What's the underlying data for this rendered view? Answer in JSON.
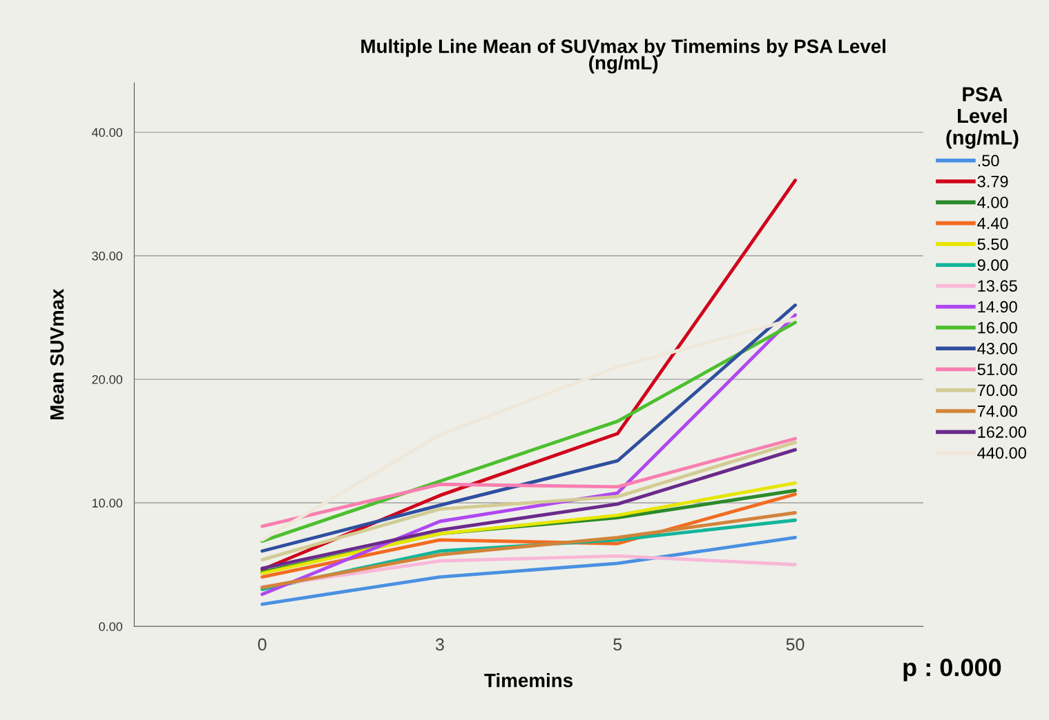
{
  "chart_data": {
    "type": "line",
    "title": "Multiple Line Mean of SUVmax by Timemins by PSA Level\n(ng/mL)",
    "xlabel": "Timemins",
    "ylabel": "Mean SUVmax",
    "legend_title": "PSA\nLevel\n(ng/mL)",
    "categories": [
      "0",
      "3",
      "5",
      "50"
    ],
    "ylim": [
      0,
      44
    ],
    "yticks": [
      {
        "value": 0,
        "label": "0.00"
      },
      {
        "value": 10,
        "label": "10.00"
      },
      {
        "value": 20,
        "label": "20.00"
      },
      {
        "value": 30,
        "label": "30.00"
      },
      {
        "value": 40,
        "label": "40.00"
      }
    ],
    "grid": "y",
    "legend": "right",
    "marker": "none",
    "line_style": "solid",
    "annotations": [
      "p : 0.000"
    ],
    "series": [
      {
        "name": ".50",
        "color": "#4a90e2",
        "values": [
          1.8,
          4.0,
          5.1,
          7.2
        ]
      },
      {
        "name": "3.79",
        "color": "#d0021b",
        "values": [
          4.6,
          10.6,
          15.6,
          36.1
        ]
      },
      {
        "name": "4.00",
        "color": "#2a8a2a",
        "values": [
          4.4,
          7.5,
          8.8,
          11.0
        ]
      },
      {
        "name": "4.40",
        "color": "#f26b21",
        "values": [
          4.0,
          7.0,
          6.7,
          10.7
        ]
      },
      {
        "name": "5.50",
        "color": "#e6e600",
        "values": [
          4.3,
          7.5,
          9.0,
          11.6
        ]
      },
      {
        "name": "9.00",
        "color": "#13b59a",
        "values": [
          3.0,
          6.1,
          7.0,
          8.6
        ]
      },
      {
        "name": "13.65",
        "color": "#f9b8d8",
        "values": [
          3.2,
          5.3,
          5.7,
          5.0
        ]
      },
      {
        "name": "14.90",
        "color": "#b048f0",
        "values": [
          2.6,
          8.5,
          10.8,
          25.2
        ]
      },
      {
        "name": "16.00",
        "color": "#4cbf2e",
        "values": [
          6.9,
          11.75,
          16.6,
          24.6
        ]
      },
      {
        "name": "43.00",
        "color": "#2f4f9f",
        "values": [
          6.1,
          9.8,
          13.4,
          26.0
        ]
      },
      {
        "name": "51.00",
        "color": "#f97fb0",
        "values": [
          8.1,
          11.5,
          11.3,
          15.2
        ]
      },
      {
        "name": "70.00",
        "color": "#d2cc94",
        "values": [
          5.4,
          9.5,
          10.5,
          14.9
        ]
      },
      {
        "name": "74.00",
        "color": "#d2843a",
        "values": [
          3.15,
          5.8,
          7.2,
          9.2
        ]
      },
      {
        "name": "162.00",
        "color": "#6a2a8a",
        "values": [
          4.7,
          7.8,
          9.9,
          14.3
        ]
      },
      {
        "name": "440.00",
        "color": "#efe8da",
        "values": [
          7.0,
          15.5,
          21.0,
          24.9
        ]
      }
    ]
  }
}
